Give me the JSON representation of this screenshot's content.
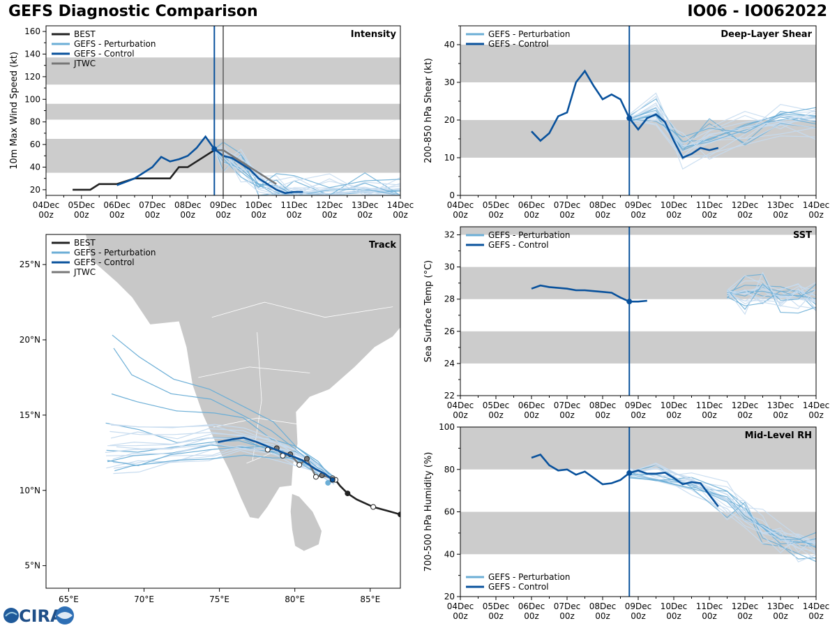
{
  "header": {
    "title_left": "GEFS Diagnostic Comparison",
    "title_right": "IO06 - IO062022"
  },
  "logo": {
    "text": "CIRA"
  },
  "colors": {
    "best": "#222222",
    "pert": "#6baed6",
    "pert_light": "#c6dbef",
    "control": "#08519c",
    "jtwc": "#777777",
    "band": "#cccccc",
    "land": "#c8c8c8"
  },
  "time_axis": {
    "labels": [
      [
        "04Dec",
        "00z"
      ],
      [
        "05Dec",
        "00z"
      ],
      [
        "06Dec",
        "00z"
      ],
      [
        "07Dec",
        "00z"
      ],
      [
        "08Dec",
        "00z"
      ],
      [
        "09Dec",
        "00z"
      ],
      [
        "10Dec",
        "00z"
      ],
      [
        "11Dec",
        "00z"
      ],
      [
        "12Dec",
        "00z"
      ],
      [
        "13Dec",
        "00z"
      ],
      [
        "14Dec",
        "00z"
      ]
    ],
    "init_time": 4.75
  },
  "chart_data": [
    {
      "id": "intensity",
      "type": "line",
      "panel_title": "Intensity",
      "ylabel": "10m Max Wind Speed (kt)",
      "ylim": [
        15,
        165
      ],
      "yticks": [
        20,
        40,
        60,
        80,
        100,
        120,
        140,
        160
      ],
      "xlim": [
        0,
        10
      ],
      "bands": [
        [
          35,
          65
        ],
        [
          82,
          96
        ],
        [
          113,
          137
        ]
      ],
      "legend": [
        "BEST",
        "GEFS - Perturbation",
        "GEFS - Control",
        "JTWC"
      ],
      "jtwc_line": 5.0,
      "series": [
        {
          "name": "BEST",
          "x": [
            0.75,
            1.25,
            1.5,
            2.0,
            2.5,
            3.0,
            3.5,
            3.75,
            4.0,
            4.75
          ],
          "y": [
            20,
            20,
            25,
            25,
            30,
            30,
            30,
            40,
            40,
            55
          ]
        },
        {
          "name": "JTWC",
          "x": [
            4.75,
            5.0,
            5.5,
            6.0,
            6.5
          ],
          "y": [
            55,
            55,
            45,
            35,
            25
          ]
        },
        {
          "name": "GEFS - Control",
          "x": [
            2.0,
            2.25,
            2.5,
            2.75,
            3.0,
            3.25,
            3.5,
            3.75,
            4.0,
            4.25,
            4.5,
            4.75,
            5.0,
            5.25,
            5.5,
            5.75,
            6.0,
            6.25,
            6.5,
            6.75,
            7.0,
            7.25
          ],
          "y": [
            24,
            27,
            30,
            35,
            40,
            49,
            45,
            47,
            50,
            57,
            67,
            56,
            50,
            48,
            43,
            38,
            30,
            25,
            20,
            17,
            18,
            18
          ]
        },
        {
          "name": "GEFS - Perturbation",
          "x": [
            4.75,
            5.0,
            5.5,
            6.0,
            6.5,
            7.0,
            8.0,
            9.0,
            10.0
          ],
          "y": [
            55,
            50,
            40,
            28,
            20,
            18,
            18,
            17,
            17
          ]
        }
      ]
    },
    {
      "id": "shear",
      "type": "line",
      "panel_title": "Deep-Layer Shear",
      "ylabel": "200-850 hPa Shear (kt)",
      "ylim": [
        0,
        45
      ],
      "yticks": [
        0,
        10,
        20,
        30,
        40
      ],
      "xlim": [
        0,
        10
      ],
      "bands": [
        [
          10,
          20
        ],
        [
          30,
          40
        ]
      ],
      "legend": [
        "GEFS - Perturbation",
        "GEFS - Control"
      ],
      "series": [
        {
          "name": "GEFS - Control",
          "x": [
            2.0,
            2.25,
            2.5,
            2.75,
            3.0,
            3.25,
            3.5,
            3.75,
            4.0,
            4.25,
            4.5,
            4.75,
            5.0,
            5.25,
            5.5,
            5.75,
            6.0,
            6.25,
            6.5,
            6.75,
            7.0,
            7.25
          ],
          "y": [
            17,
            14.5,
            16.5,
            21,
            22,
            30,
            33,
            29,
            25.5,
            26.8,
            25.5,
            20.5,
            17.5,
            20.5,
            21.5,
            19.5,
            14.5,
            10,
            11,
            12.6,
            12,
            12.6
          ]
        },
        {
          "name": "GEFS - Perturbation",
          "x": [
            4.75,
            5.5,
            6.25,
            7.0,
            8.0,
            9.0,
            10.0
          ],
          "y": [
            20,
            22,
            12,
            15,
            18,
            20,
            20
          ]
        }
      ]
    },
    {
      "id": "sst",
      "type": "line",
      "panel_title": "SST",
      "ylabel": "Sea Surface Temp (°C)",
      "ylim": [
        22,
        32.5
      ],
      "yticks": [
        22,
        24,
        26,
        28,
        30,
        32
      ],
      "xlim": [
        0,
        10
      ],
      "bands": [
        [
          24,
          26
        ],
        [
          28,
          30
        ],
        [
          32,
          32.5
        ]
      ],
      "legend": [
        "GEFS - Perturbation",
        "GEFS - Control"
      ],
      "series": [
        {
          "name": "GEFS - Control",
          "x": [
            2.0,
            2.25,
            2.5,
            2.75,
            3.0,
            3.25,
            3.5,
            3.75,
            4.0,
            4.25,
            4.5,
            4.75,
            5.0,
            5.25
          ],
          "y": [
            28.65,
            28.85,
            28.75,
            28.7,
            28.65,
            28.55,
            28.55,
            28.5,
            28.45,
            28.4,
            28.1,
            27.85,
            27.85,
            27.9
          ]
        },
        {
          "name": "GEFS - Perturbation",
          "x": [
            7.5,
            8.0,
            8.5,
            9.0,
            9.5,
            10.0
          ],
          "y": [
            28.35,
            28.3,
            28.4,
            28.3,
            28.2,
            28.1
          ]
        }
      ]
    },
    {
      "id": "rh",
      "type": "line",
      "panel_title": "Mid-Level RH",
      "ylabel": "700-500 hPa Humidity (%)",
      "ylim": [
        20,
        100
      ],
      "yticks": [
        20,
        40,
        60,
        80,
        100
      ],
      "xlim": [
        0,
        10
      ],
      "bands": [
        [
          40,
          60
        ],
        [
          80,
          100
        ]
      ],
      "legend": [
        "GEFS - Perturbation",
        "GEFS - Control"
      ],
      "series": [
        {
          "name": "GEFS - Control",
          "x": [
            2.0,
            2.25,
            2.5,
            2.75,
            3.0,
            3.25,
            3.5,
            3.75,
            4.0,
            4.25,
            4.5,
            4.75,
            5.0,
            5.25,
            5.5,
            5.75,
            6.0,
            6.25,
            6.5,
            6.75,
            7.0,
            7.25
          ],
          "y": [
            85.5,
            87,
            82,
            79.5,
            80,
            77.5,
            79,
            76,
            73,
            73.5,
            75,
            78.3,
            79.5,
            78,
            78,
            78.5,
            76,
            73,
            74,
            73.5,
            68,
            62.5
          ]
        },
        {
          "name": "GEFS - Perturbation",
          "x": [
            4.75,
            5.5,
            6.5,
            7.5,
            8.0,
            8.5,
            9.0,
            9.5,
            10.0
          ],
          "y": [
            78,
            77,
            72,
            65,
            58,
            52,
            48,
            45,
            44
          ]
        }
      ]
    },
    {
      "id": "track",
      "type": "line",
      "panel_title": "Track",
      "xlim": [
        63.5,
        87
      ],
      "ylim": [
        3.5,
        27
      ],
      "xticks": [
        65,
        70,
        75,
        80,
        85
      ],
      "yticks": [
        5,
        10,
        15,
        20,
        25
      ],
      "xtick_labels": [
        "65°E",
        "70°E",
        "75°E",
        "80°E",
        "85°E"
      ],
      "ytick_labels": [
        "5°N",
        "10°N",
        "15°N",
        "20°N",
        "25°N"
      ],
      "legend": [
        "BEST",
        "GEFS - Perturbation",
        "GEFS - Control",
        "JTWC"
      ],
      "series": [
        {
          "name": "BEST",
          "lon": [
            87,
            86.3,
            85.2,
            84.1,
            83.5,
            83.0,
            82.7,
            82.5
          ],
          "lat": [
            8.4,
            8.6,
            8.9,
            9.4,
            9.8,
            10.3,
            10.7,
            10.8
          ]
        },
        {
          "name": "JTWC",
          "lon": [
            82.5,
            81.8,
            81.4,
            80.8,
            80.3,
            79.7,
            79.2,
            78.8,
            78.2
          ],
          "lat": [
            10.8,
            11.0,
            10.9,
            12.1,
            11.7,
            12.4,
            12.3,
            12.8,
            12.7
          ]
        },
        {
          "name": "GEFS - Control",
          "lon": [
            82.5,
            82.0,
            81.4,
            80.5,
            79.5,
            78.5,
            77.5,
            76.6,
            75.9,
            74.9
          ],
          "lat": [
            10.7,
            11.1,
            11.4,
            12.0,
            12.4,
            12.8,
            13.2,
            13.5,
            13.4,
            13.2
          ]
        },
        {
          "name": "GEFS - Perturbation",
          "lon": [
            82.6,
            81.5,
            80.0,
            78.5,
            76.5,
            74.5,
            72.0,
            69.5,
            67.8
          ],
          "lat": [
            10.7,
            11.5,
            12.3,
            12.9,
            13.3,
            13.2,
            12.9,
            12.8,
            12.7
          ]
        }
      ]
    }
  ]
}
